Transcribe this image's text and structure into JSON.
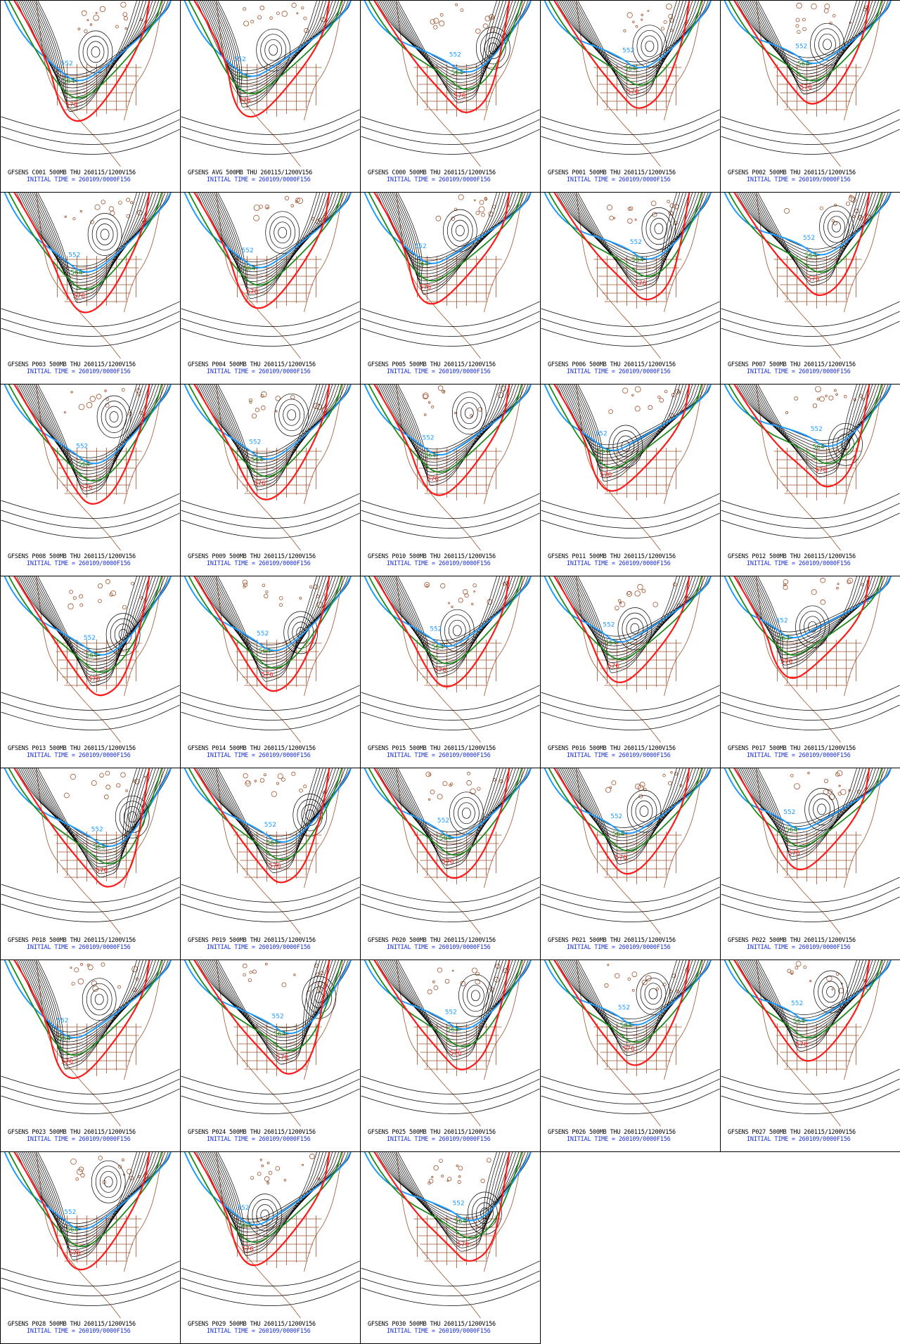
{
  "colors": {
    "contour": "#000000",
    "line_552": "#1f9bff",
    "line_564": "#1a8a1a",
    "line_576": "#ff1a1a",
    "map_outline": "#a0522d",
    "initial_time_text": "#1a2fd6",
    "background": "#ffffff"
  },
  "contour_labels": [
    "552",
    "564",
    "576"
  ],
  "panels": [
    {
      "title": "GFSENS C001 500MB THU 260115/1200V156",
      "initial": "INITIAL TIME = 260109/0000F156"
    },
    {
      "title": "GFSENS AVG 500MB THU 260115/1200V156",
      "initial": "INITIAL TIME = 260109/0000F156"
    },
    {
      "title": "GFSENS C000 500MB THU 260115/1200V156",
      "initial": "INITIAL TIME = 260109/0000F156"
    },
    {
      "title": "GFSENS P001 500MB THU 260115/1200V156",
      "initial": "INITIAL TIME = 260109/0000F156"
    },
    {
      "title": "GFSENS P002 500MB THU 260115/1200V156",
      "initial": "INITIAL TIME = 260109/0000F156"
    },
    {
      "title": "GFSENS P003 500MB THU 260115/1200V156",
      "initial": "INITIAL TIME = 260109/0000F156"
    },
    {
      "title": "GFSENS P004 500MB THU 260115/1200V156",
      "initial": "INITIAL TIME = 260109/0000F156"
    },
    {
      "title": "GFSENS P005 500MB THU 260115/1200V156",
      "initial": "INITIAL TIME = 260109/0000F156"
    },
    {
      "title": "GFSENS P006 500MB THU 260115/1200V156",
      "initial": "INITIAL TIME = 260109/0000F156"
    },
    {
      "title": "GFSENS P007 500MB THU 260115/1200V156",
      "initial": "INITIAL TIME = 260109/0000F156"
    },
    {
      "title": "GFSENS P008 500MB THU 260115/1200V156",
      "initial": "INITIAL TIME = 260109/0000F156"
    },
    {
      "title": "GFSENS P009 500MB THU 260115/1200V156",
      "initial": "INITIAL TIME = 260109/0000F156"
    },
    {
      "title": "GFSENS P010 500MB THU 260115/1200V156",
      "initial": "INITIAL TIME = 260109/0000F156"
    },
    {
      "title": "GFSENS P011 500MB THU 260115/1200V156",
      "initial": "INITIAL TIME = 260109/0000F156"
    },
    {
      "title": "GFSENS P012 500MB THU 260115/1200V156",
      "initial": "INITIAL TIME = 260109/0000F156"
    },
    {
      "title": "GFSENS P013 500MB THU 260115/1200V156",
      "initial": "INITIAL TIME = 260109/0000F156"
    },
    {
      "title": "GFSENS P014 500MB THU 260115/1200V156",
      "initial": "INITIAL TIME = 260109/0000F156"
    },
    {
      "title": "GFSENS P015 500MB THU 260115/1200V156",
      "initial": "INITIAL TIME = 260109/0000F156"
    },
    {
      "title": "GFSENS P016 500MB THU 260115/1200V156",
      "initial": "INITIAL TIME = 260109/0000F156"
    },
    {
      "title": "GFSENS P017 500MB THU 260115/1200V156",
      "initial": "INITIAL TIME = 260109/0000F156"
    },
    {
      "title": "GFSENS P018 500MB THU 260115/1200V156",
      "initial": "INITIAL TIME = 260109/0000F156"
    },
    {
      "title": "GFSENS P019 500MB THU 260115/1200V156",
      "initial": "INITIAL TIME = 260109/0000F156"
    },
    {
      "title": "GFSENS P020 500MB THU 260115/1200V156",
      "initial": "INITIAL TIME = 260109/0000F156"
    },
    {
      "title": "GFSENS P021 500MB THU 260115/1200V156",
      "initial": "INITIAL TIME = 260109/0000F156"
    },
    {
      "title": "GFSENS P022 500MB THU 260115/1200V156",
      "initial": "INITIAL TIME = 260109/0000F156"
    },
    {
      "title": "GFSENS P023 500MB THU 260115/1200V156",
      "initial": "INITIAL TIME = 260109/0000F156"
    },
    {
      "title": "GFSENS P024 500MB THU 260115/1200V156",
      "initial": "INITIAL TIME = 260109/0000F156"
    },
    {
      "title": "GFSENS P025 500MB THU 260115/1200V156",
      "initial": "INITIAL TIME = 260109/0000F156"
    },
    {
      "title": "GFSENS P026 500MB THU 260115/1200V156",
      "initial": "INITIAL TIME = 260109/0000F156"
    },
    {
      "title": "GFSENS P027 500MB THU 260115/1200V156",
      "initial": "INITIAL TIME = 260109/0000F156"
    },
    {
      "title": "GFSENS P028 500MB THU 260115/1200V156",
      "initial": "INITIAL TIME = 260109/0000F156"
    },
    {
      "title": "GFSENS P029 500MB THU 260115/1200V156",
      "initial": "INITIAL TIME = 260109/0000F156"
    },
    {
      "title": "GFSENS P030 500MB THU 260115/1200V156",
      "initial": "INITIAL TIME = 260109/0000F156"
    }
  ]
}
